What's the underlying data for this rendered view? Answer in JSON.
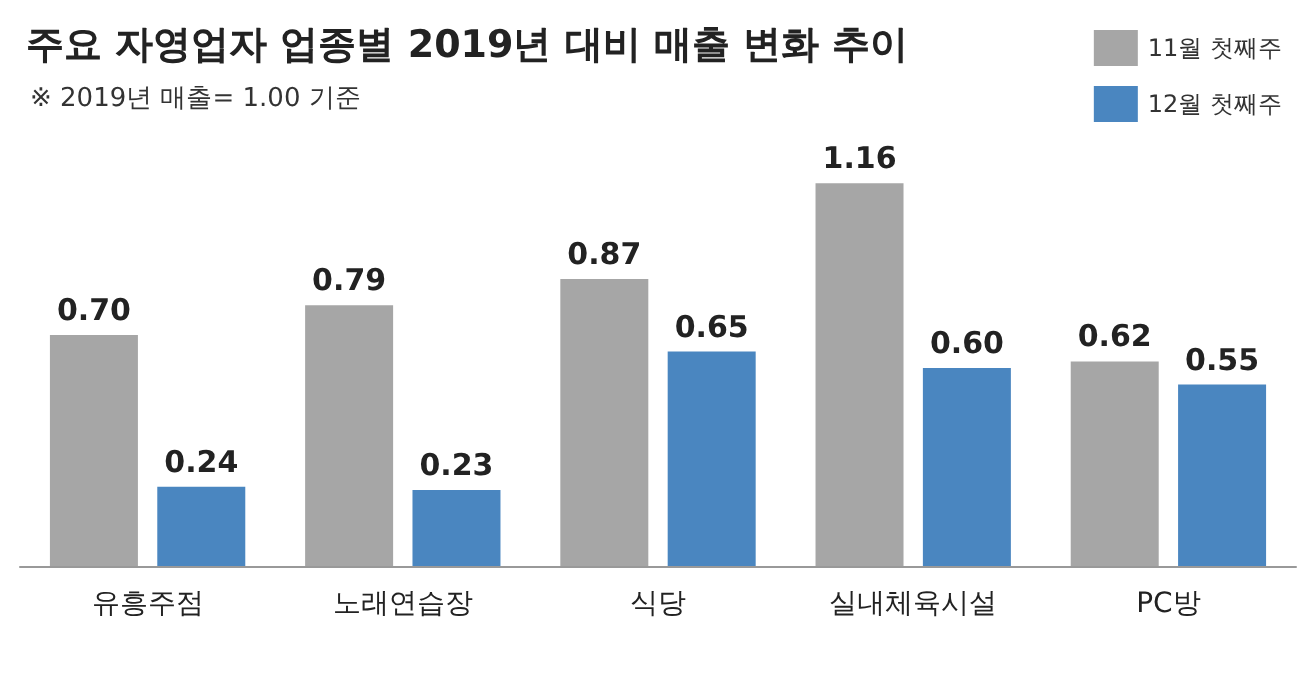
{
  "chart_data": {
    "type": "bar",
    "title": "주요 자영업자 업종별 2019년 대비 매출 변화 추이",
    "subtitle": "※ 2019년 매출= 1.00 기준",
    "categories": [
      "유흥주점",
      "노래연습장",
      "식당",
      "실내체육시설",
      "PC방"
    ],
    "series": [
      {
        "name": "11월 첫째주",
        "color": "#a6a6a6",
        "values": [
          0.7,
          0.79,
          0.87,
          1.16,
          0.62
        ],
        "value_labels": [
          "0.70",
          "0.79",
          "0.87",
          "1.16",
          "0.62"
        ]
      },
      {
        "name": "12월 첫째주",
        "color": "#4a86c0",
        "values": [
          0.24,
          0.23,
          0.65,
          0.6,
          0.55
        ],
        "value_labels": [
          "0.24",
          "0.23",
          "0.65",
          "0.60",
          "0.55"
        ]
      }
    ],
    "legend": "top right"
  }
}
